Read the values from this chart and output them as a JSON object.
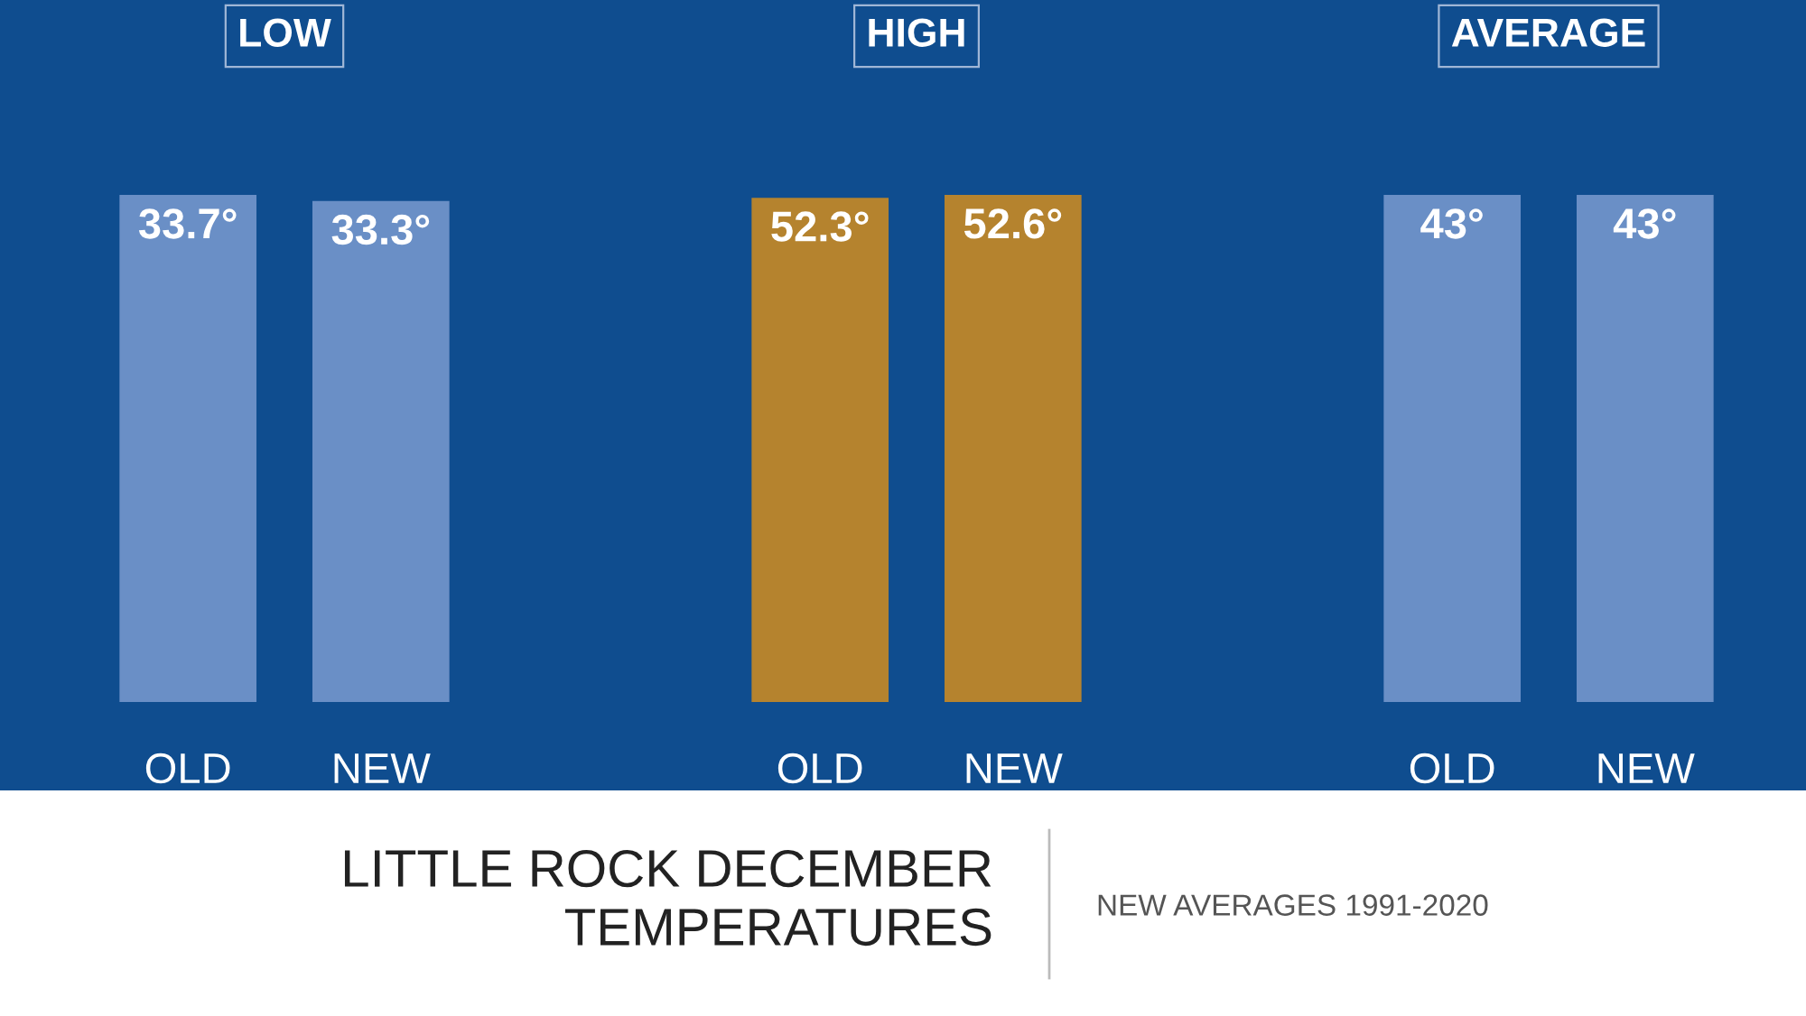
{
  "chart_data": [
    {
      "type": "bar",
      "title": "LOW",
      "categories": [
        "OLD",
        "NEW"
      ],
      "values": [
        33.7,
        33.3
      ],
      "value_labels": [
        "33.7°",
        "33.3°"
      ],
      "colors": [
        "#6a8fc6",
        "#6a8fc6"
      ],
      "annotations": [
        "LITTLE ROCK DECEMBER\nTEMPERATURES",
        "NEW AVERAGES 1991-2020"
      ]
    },
    {
      "type": "bar",
      "title": "HIGH",
      "categories": [
        "OLD",
        "NEW"
      ],
      "values": [
        52.3,
        52.6
      ],
      "value_labels": [
        "52.3°",
        "52.6°"
      ],
      "colors": [
        "#b5832e",
        "#b5832e"
      ]
    },
    {
      "type": "bar",
      "title": "AVERAGE",
      "categories": [
        "OLD",
        "NEW"
      ],
      "values": [
        43,
        43
      ],
      "value_labels": [
        "43°",
        "43°"
      ],
      "colors": [
        "#6a8fc6",
        "#6a8fc6"
      ]
    }
  ]
}
